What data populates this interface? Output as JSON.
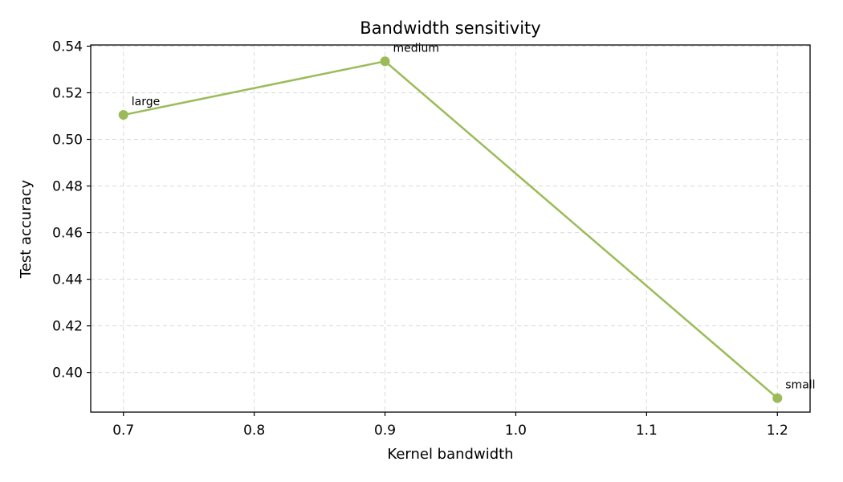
{
  "chart_data": {
    "type": "line",
    "title": "Bandwidth sensitivity",
    "xlabel": "Kernel bandwidth",
    "ylabel": "Test accuracy",
    "xlim": [
      0.675,
      1.225
    ],
    "ylim": [
      0.383,
      0.5405
    ],
    "x_ticks": [
      0.7,
      0.8,
      0.9,
      1.0,
      1.1,
      1.2
    ],
    "y_ticks": [
      0.4,
      0.42,
      0.44,
      0.46,
      0.48,
      0.5,
      0.52,
      0.54
    ],
    "x_tick_labels": [
      "0.7",
      "0.8",
      "0.9",
      "1.0",
      "1.1",
      "1.2"
    ],
    "y_tick_labels": [
      "0.40",
      "0.42",
      "0.44",
      "0.46",
      "0.48",
      "0.50",
      "0.52",
      "0.54"
    ],
    "grid": true,
    "color": "#9bbb59",
    "series": [
      {
        "x": [
          0.7,
          0.9,
          1.2
        ],
        "y": [
          0.5105,
          0.5335,
          0.389
        ],
        "labels": [
          "large",
          "medium",
          "small"
        ]
      }
    ]
  }
}
